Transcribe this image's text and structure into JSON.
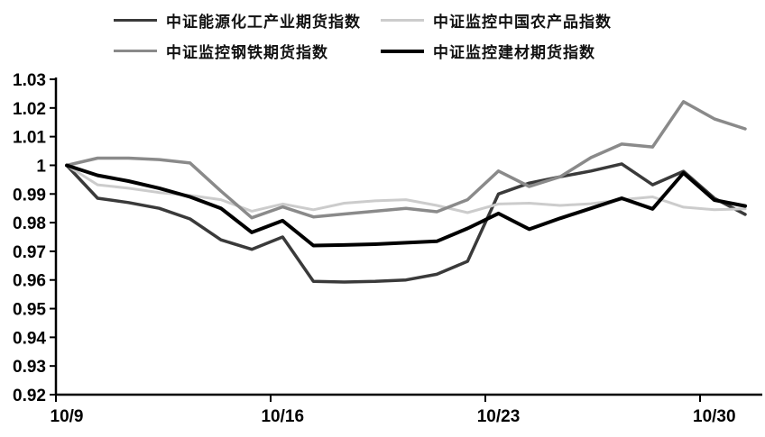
{
  "chart_data": {
    "type": "line",
    "title": "",
    "xlabel": "",
    "ylabel": "",
    "ylim": [
      0.92,
      1.03
    ],
    "y_tick_step": 0.01,
    "y_tick_labels": [
      "1.03",
      "1.02",
      "1.01",
      "1",
      "0.99",
      "0.98",
      "0.97",
      "0.96",
      "0.95",
      "0.94",
      "0.93",
      "0.92"
    ],
    "x_tick_labels": [
      "10/9",
      "10/16",
      "10/23",
      "10/30"
    ],
    "x_label_days": [
      0,
      7,
      14,
      21
    ],
    "dates": [
      "10/9",
      "10/10",
      "10/11",
      "10/12",
      "10/13",
      "10/14",
      "10/15",
      "10/16",
      "10/17",
      "10/18",
      "10/19",
      "10/20",
      "10/21",
      "10/22",
      "10/23",
      "10/24",
      "10/25",
      "10/26",
      "10/27",
      "10/28",
      "10/29",
      "10/30",
      "10/31"
    ],
    "grid": "off",
    "legend_position": "top",
    "axis_color": "#000000",
    "series": [
      {
        "name": "中证能源化工产业期货指数",
        "color": "#3a3a3a",
        "width": 3.5,
        "values": [
          1.0,
          0.9885,
          0.987,
          0.985,
          0.9813,
          0.974,
          0.9707,
          0.975,
          0.9595,
          0.9593,
          0.9595,
          0.96,
          0.962,
          0.9665,
          0.99,
          0.9938,
          0.996,
          0.998,
          1.0005,
          0.9932,
          0.9979,
          0.9885,
          0.9829
        ]
      },
      {
        "name": "中证监控中国农产品指数",
        "color": "#cccccc",
        "width": 3,
        "values": [
          1.0,
          0.9932,
          0.992,
          0.9905,
          0.9895,
          0.988,
          0.984,
          0.9865,
          0.9845,
          0.9868,
          0.9876,
          0.988,
          0.986,
          0.9835,
          0.9865,
          0.9868,
          0.986,
          0.9866,
          0.988,
          0.989,
          0.9854,
          0.9845,
          0.9848
        ]
      },
      {
        "name": "中证监控钢铁期货指数",
        "color": "#8a8a8a",
        "width": 3.5,
        "values": [
          1.0,
          1.0025,
          1.0025,
          1.002,
          1.0008,
          0.991,
          0.9817,
          0.9855,
          0.982,
          0.983,
          0.984,
          0.985,
          0.9838,
          0.988,
          0.998,
          0.9926,
          0.996,
          1.0027,
          1.0074,
          1.0064,
          1.0222,
          1.0162,
          1.0127
        ]
      },
      {
        "name": "中证监控建材期货指数",
        "color": "#000000",
        "width": 4,
        "values": [
          1.0,
          0.9965,
          0.9945,
          0.992,
          0.989,
          0.985,
          0.9766,
          0.9807,
          0.972,
          0.9722,
          0.9725,
          0.973,
          0.9735,
          0.978,
          0.9832,
          0.9777,
          0.9815,
          0.985,
          0.9885,
          0.9848,
          0.9973,
          0.9879,
          0.9858
        ]
      }
    ]
  }
}
